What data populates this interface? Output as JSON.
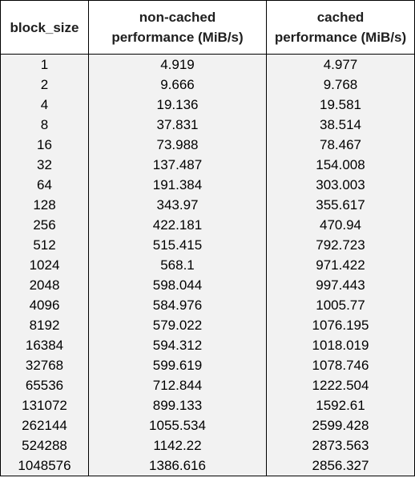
{
  "chart_data": {
    "type": "table",
    "columns": [
      "block_size",
      "non-cached performance (MiB/s)",
      "cached performance (MiB/s)"
    ],
    "rows": [
      [
        "1",
        "4.919",
        "4.977"
      ],
      [
        "2",
        "9.666",
        "9.768"
      ],
      [
        "4",
        "19.136",
        "19.581"
      ],
      [
        "8",
        "37.831",
        "38.514"
      ],
      [
        "16",
        "73.988",
        "78.467"
      ],
      [
        "32",
        "137.487",
        "154.008"
      ],
      [
        "64",
        "191.384",
        "303.003"
      ],
      [
        "128",
        "343.97",
        "355.617"
      ],
      [
        "256",
        "422.181",
        "470.94"
      ],
      [
        "512",
        "515.415",
        "792.723"
      ],
      [
        "1024",
        "568.1",
        "971.422"
      ],
      [
        "2048",
        "598.044",
        "997.443"
      ],
      [
        "4096",
        "584.976",
        "1005.77"
      ],
      [
        "8192",
        "579.022",
        "1076.195"
      ],
      [
        "16384",
        "594.312",
        "1018.019"
      ],
      [
        "32768",
        "599.619",
        "1078.746"
      ],
      [
        "65536",
        "712.844",
        "1222.504"
      ],
      [
        "131072",
        "899.133",
        "1592.61"
      ],
      [
        "262144",
        "1055.534",
        "2599.428"
      ],
      [
        "524288",
        "1142.22",
        "2873.563"
      ],
      [
        "1048576",
        "1386.616",
        "2856.327"
      ]
    ]
  },
  "colors": {
    "header_bg": "#ffffff",
    "cell_bg": "#f2f2f2",
    "border": "#000000"
  }
}
